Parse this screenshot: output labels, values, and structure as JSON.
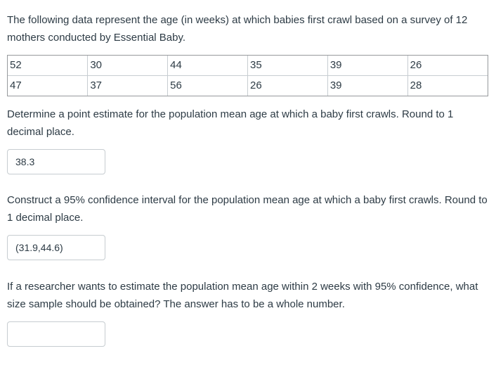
{
  "intro": "The following data represent the age (in weeks) at which babies first crawl based on a survey of 12 mothers conducted by Essential Baby.",
  "table": {
    "rows": [
      [
        "52",
        "30",
        "44",
        "35",
        "39",
        "26"
      ],
      [
        "47",
        "37",
        "56",
        "26",
        "39",
        "28"
      ]
    ]
  },
  "questions": [
    {
      "prompt": "Determine a point estimate for the population mean age at which a baby first crawls. Round to 1 decimal place.",
      "answer": "38.3"
    },
    {
      "prompt": "Construct a 95% confidence interval for the population mean age at which a baby first crawls. Round to 1 decimal place.",
      "answer": "(31.9,44.6)"
    },
    {
      "prompt": "If a researcher wants to estimate the population mean age within 2 weeks with 95% confidence, what size sample should be obtained? The answer has to be a whole number.",
      "answer": ""
    }
  ],
  "colors": {
    "text": "#2d3b45",
    "table_outer_border": "#96999c",
    "table_inner_border": "#c7cdd1",
    "input_border": "#c7cdd1",
    "background": "#ffffff"
  }
}
